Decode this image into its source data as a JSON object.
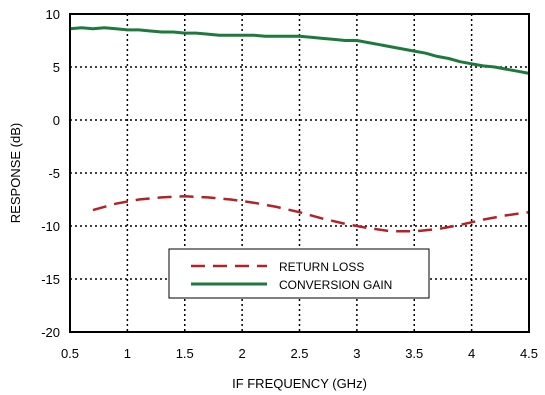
{
  "chart_data": {
    "type": "line",
    "title": "",
    "xlabel": "IF FREQUENCY (GHz)",
    "ylabel": "RESPONSE (dB)",
    "xlim": [
      0.5,
      4.5
    ],
    "ylim": [
      -20,
      10
    ],
    "xticks": [
      0.5,
      1,
      1.5,
      2,
      2.5,
      3,
      3.5,
      4,
      4.5
    ],
    "yticks": [
      10,
      5,
      0,
      -5,
      -10,
      -15,
      -20
    ],
    "grid": true,
    "grid_style": "dotted",
    "legend_position": "lower-center",
    "series": [
      {
        "name": "RETURN LOSS",
        "color": "#b22228",
        "style": "dashed",
        "x": [
          0.7,
          0.9,
          1.1,
          1.3,
          1.5,
          1.7,
          1.9,
          2.1,
          2.3,
          2.5,
          2.7,
          2.9,
          3.1,
          3.3,
          3.5,
          3.7,
          3.9,
          4.1,
          4.3,
          4.5
        ],
        "values": [
          -8.5,
          -7.9,
          -7.5,
          -7.3,
          -7.2,
          -7.3,
          -7.5,
          -7.8,
          -8.2,
          -8.7,
          -9.3,
          -9.8,
          -10.2,
          -10.5,
          -10.5,
          -10.3,
          -9.9,
          -9.4,
          -9.0,
          -8.7
        ]
      },
      {
        "name": "CONVERSION GAIN",
        "color": "#1e7a3c",
        "style": "solid",
        "x": [
          0.5,
          0.6,
          0.7,
          0.8,
          0.9,
          1.0,
          1.1,
          1.2,
          1.3,
          1.4,
          1.5,
          1.6,
          1.7,
          1.8,
          1.9,
          2.0,
          2.1,
          2.2,
          2.3,
          2.4,
          2.5,
          2.6,
          2.7,
          2.8,
          2.9,
          3.0,
          3.1,
          3.2,
          3.3,
          3.4,
          3.5,
          3.6,
          3.7,
          3.8,
          3.9,
          4.0,
          4.1,
          4.2,
          4.3,
          4.4,
          4.5
        ],
        "values": [
          8.6,
          8.7,
          8.6,
          8.7,
          8.6,
          8.5,
          8.5,
          8.4,
          8.3,
          8.3,
          8.2,
          8.2,
          8.1,
          8.0,
          8.0,
          8.0,
          8.0,
          7.9,
          7.9,
          7.9,
          7.9,
          7.8,
          7.7,
          7.6,
          7.5,
          7.5,
          7.3,
          7.1,
          6.9,
          6.7,
          6.5,
          6.3,
          6.0,
          5.8,
          5.5,
          5.3,
          5.1,
          5.0,
          4.8,
          4.6,
          4.4
        ]
      }
    ]
  }
}
